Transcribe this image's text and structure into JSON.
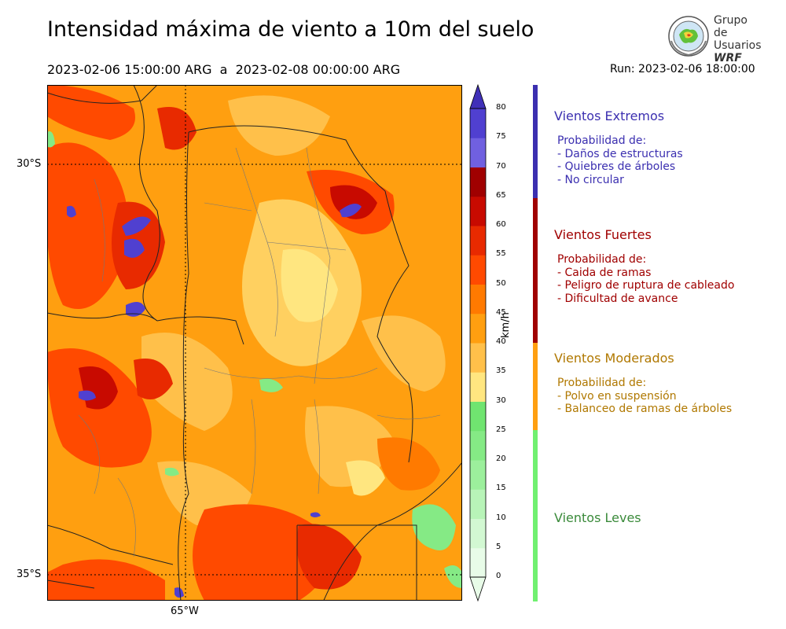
{
  "header": {
    "title": "Intensidad máxima de viento a 10m del suelo",
    "period": "2023-02-06 15:00:00 ARG  a  2023-02-08 00:00:00 ARG",
    "run": "Run: 2023-02-06 18:00:00"
  },
  "logo": {
    "line1": "Grupo de",
    "line2": "Usuarios",
    "line3": "WRF"
  },
  "map": {
    "lat_labels": [
      "30°S",
      "35°S"
    ],
    "lon_labels": [
      "65°W"
    ]
  },
  "colorbar": {
    "units": "km/h",
    "ticks": [
      "0",
      "5",
      "10",
      "15",
      "20",
      "25",
      "30",
      "35",
      "40",
      "45",
      "50",
      "55",
      "60",
      "65",
      "70",
      "75",
      "80"
    ],
    "colors": [
      "#e8fce8",
      "#d2f8d2",
      "#b8f4b8",
      "#9cef9c",
      "#85ea85",
      "#70e470",
      "#ffe680",
      "#ffc04a",
      "#ff9f10",
      "#ff7a00",
      "#ff4a00",
      "#e82a00",
      "#c80a00",
      "#a00000",
      "#7060e0",
      "#5040d0",
      "#4030b8"
    ]
  },
  "categories": [
    {
      "title": "Vientos Extremos",
      "color": "#3b2fb0",
      "desc": [
        "Probabilidad de:",
        "- Daños de estructuras",
        "- Quiebres de árboles",
        "- No circular"
      ]
    },
    {
      "title": "Vientos Fuertes",
      "color": "#a00000",
      "desc": [
        "Probabilidad de:",
        "- Caida de ramas",
        "- Peligro de ruptura de cableado",
        "- Dificultad de avance"
      ]
    },
    {
      "title": "Vientos Moderados",
      "color": "#b07800",
      "desc": [
        "Probabilidad de:",
        "- Polvo en suspensión",
        "- Balanceo de ramas de árboles"
      ]
    },
    {
      "title": "Vientos Leves",
      "color": "#3a8a3a",
      "desc": []
    }
  ]
}
